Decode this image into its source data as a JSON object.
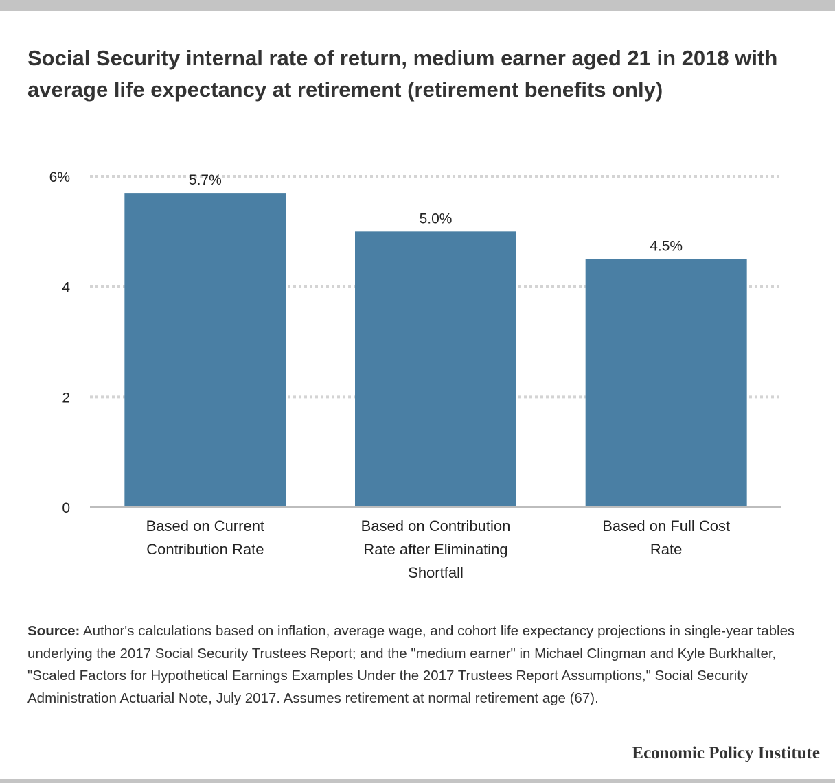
{
  "title": "Social Security internal rate of return, medium earner aged 21 in 2018 with average life expectancy at retirement (retirement benefits only)",
  "colors": {
    "bar": "#4a7fa4",
    "grid": "#d4d4d4",
    "axis": "#bdbdbd",
    "rule": "#c4c4c4"
  },
  "chart_data": {
    "type": "bar",
    "categories": [
      [
        "Based on Current",
        "Contribution Rate"
      ],
      [
        "Based on Contribution",
        "Rate after Eliminating",
        "Shortfall"
      ],
      [
        "Based on Full Cost",
        "Rate"
      ]
    ],
    "values": [
      5.7,
      5.0,
      4.5
    ],
    "value_labels": [
      "5.7%",
      "5.0%",
      "4.5%"
    ],
    "y_ticks": [
      {
        "value": 0,
        "label": "0"
      },
      {
        "value": 2,
        "label": "2"
      },
      {
        "value": 4,
        "label": "4"
      },
      {
        "value": 6,
        "label": "6%"
      }
    ],
    "ylim": [
      0,
      6
    ],
    "grid": true,
    "legend": "none"
  },
  "source": {
    "label": "Source:",
    "text": "Author's calculations based on  inflation, average wage, and cohort life expectancy projections in single-year tables underlying the 2017 Social Security Trustees Report; and the \"medium earner\" in Michael Clingman and Kyle Burkhalter, \"Scaled Factors for Hypothetical Earnings Examples Under the 2017 Trustees  Report Assumptions,\" Social Security Administration Actuarial Note, July 2017. Assumes retirement at normal retirement age (67)."
  },
  "brand": "Economic Policy Institute"
}
